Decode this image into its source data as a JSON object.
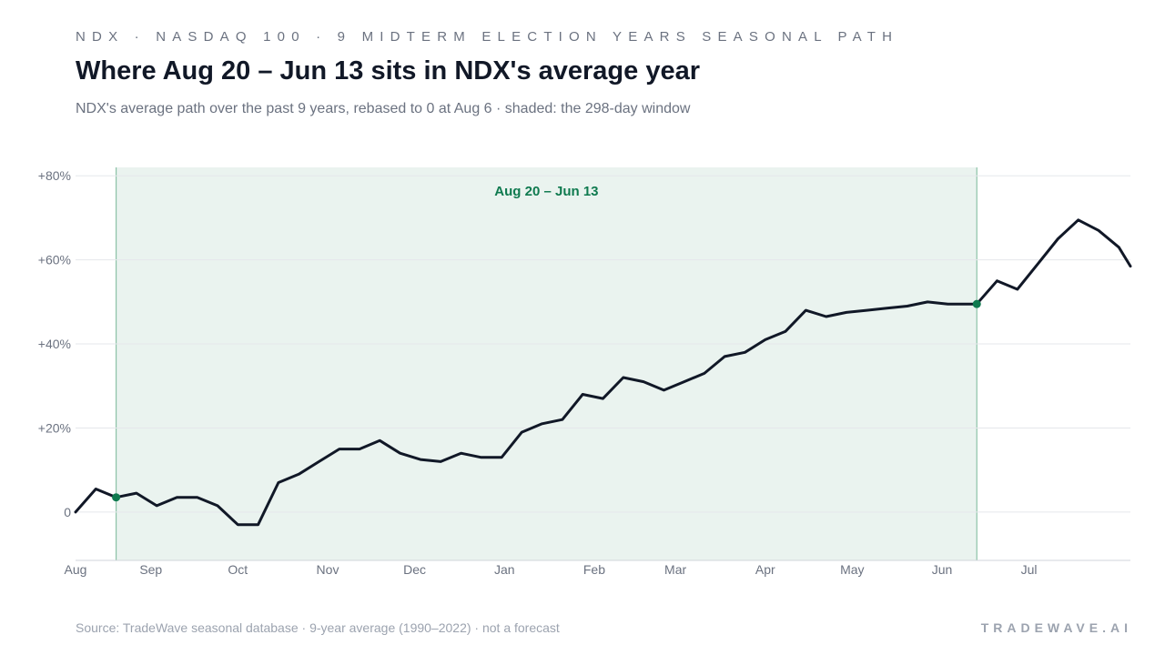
{
  "header": {
    "eyebrow": "NDX · NASDAQ 100 · 9 MIDTERM ELECTION YEARS SEASONAL PATH",
    "title": "Where Aug 20 – Jun 13 sits in NDX's average year",
    "subtitle": "NDX's average path over the past 9 years, rebased to 0 at Aug 6 · shaded: the 298-day window"
  },
  "footer": {
    "source": "Source: TradeWave seasonal database · 9-year average (1990–2022) · not a forecast",
    "brand": "TRADEWAVE.AI"
  },
  "colors": {
    "line": "#111827",
    "window_fill": "#eaf3ef",
    "window_edge": "#8cc2a7",
    "accent": "#0f7a4f",
    "grid": "#e5e7eb",
    "axis_text": "#6b7280"
  },
  "chart_data": {
    "type": "line",
    "title": "Where Aug 20 – Jun 13 sits in NDX's average year",
    "x_tick_labels": [
      "Aug",
      "Sep",
      "Oct",
      "Nov",
      "Dec",
      "Jan",
      "Feb",
      "Mar",
      "Apr",
      "May",
      "Jun",
      "Jul"
    ],
    "y_ticks": [
      0,
      20,
      40,
      60,
      80
    ],
    "y_tick_labels": [
      "0",
      "+20%",
      "+40%",
      "+60%",
      "+80%"
    ],
    "ylim": [
      -11.5,
      82
    ],
    "xlim": [
      "Aug 6",
      "Aug 5"
    ],
    "grid": true,
    "window": {
      "label": "Aug 20 – Jun 13",
      "start": "Aug 20",
      "end": "Jun 13",
      "start_value": 3.5,
      "end_value": 49.5
    },
    "series": [
      {
        "x": [
          "Aug 6",
          "Aug 13",
          "Aug 20",
          "Aug 27",
          "Sep 3",
          "Sep 10",
          "Sep 17",
          "Sep 24",
          "Oct 1",
          "Oct 8",
          "Oct 15",
          "Oct 22",
          "Oct 29",
          "Nov 5",
          "Nov 12",
          "Nov 19",
          "Nov 26",
          "Dec 3",
          "Dec 10",
          "Dec 17",
          "Dec 24",
          "Dec 31",
          "Jan 7",
          "Jan 14",
          "Jan 21",
          "Jan 28",
          "Feb 4",
          "Feb 11",
          "Feb 18",
          "Feb 25",
          "Mar 4",
          "Mar 11",
          "Mar 18",
          "Mar 25",
          "Apr 1",
          "Apr 8",
          "Apr 15",
          "Apr 22",
          "Apr 29",
          "May 6",
          "May 13",
          "May 20",
          "May 27",
          "Jun 3",
          "Jun 10",
          "Jun 13",
          "Jun 20",
          "Jun 27",
          "Jul 4",
          "Jul 11",
          "Jul 18",
          "Jul 25",
          "Aug 1",
          "Aug 5"
        ],
        "values": [
          0,
          5.5,
          3.5,
          4.5,
          1.5,
          3.5,
          3.5,
          1.5,
          -3,
          -3,
          7,
          9,
          12,
          15,
          15,
          17,
          14,
          12.5,
          12,
          14,
          13,
          13,
          19,
          21,
          22,
          28,
          27,
          32,
          31,
          29,
          31,
          33,
          37,
          38,
          41,
          43,
          48,
          46.5,
          47.5,
          48,
          48.5,
          49,
          50,
          49.5,
          49.5,
          49.5,
          55,
          53,
          59,
          65,
          69.5,
          67,
          63,
          58.5
        ]
      }
    ]
  }
}
